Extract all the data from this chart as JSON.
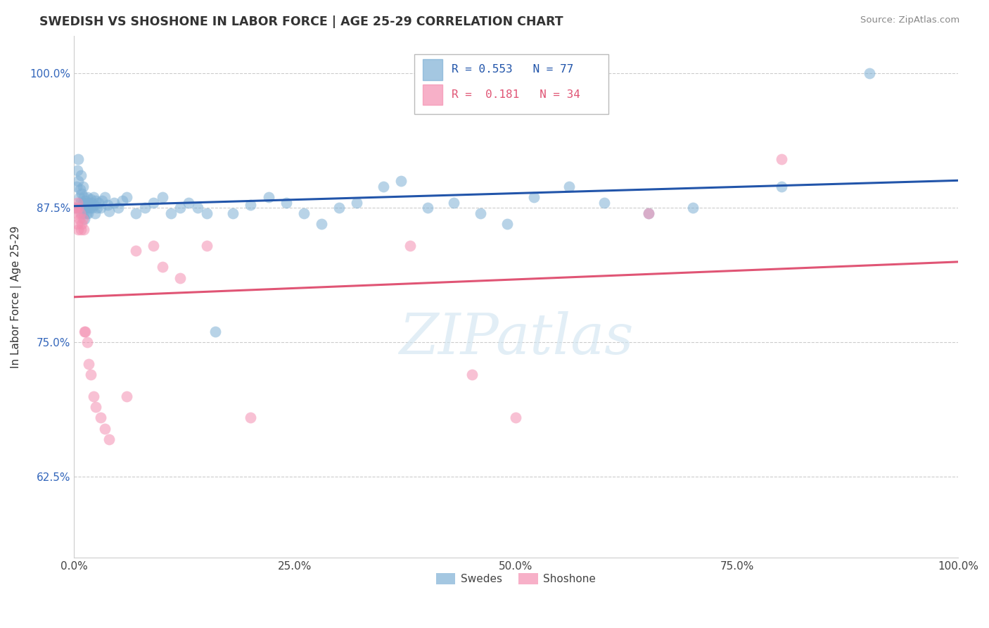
{
  "title": "SWEDISH VS SHOSHONE IN LABOR FORCE | AGE 25-29 CORRELATION CHART",
  "source_text": "Source: ZipAtlas.com",
  "ylabel": "In Labor Force | Age 25-29",
  "xlim": [
    0.0,
    1.0
  ],
  "ylim": [
    0.55,
    1.035
  ],
  "xticks": [
    0.0,
    0.25,
    0.5,
    0.75,
    1.0
  ],
  "xticklabels": [
    "0.0%",
    "25.0%",
    "50.0%",
    "75.0%",
    "100.0%"
  ],
  "yticks": [
    0.625,
    0.75,
    0.875,
    1.0
  ],
  "yticklabels": [
    "62.5%",
    "75.0%",
    "87.5%",
    "100.0%"
  ],
  "r_swedish": "0.553",
  "n_swedish": "77",
  "r_shoshone": "0.181",
  "n_shoshone": "34",
  "blue_color": "#7EB0D5",
  "pink_color": "#F48FB1",
  "blue_line_color": "#2255AA",
  "pink_line_color": "#E05575",
  "swedish_x": [
    0.002,
    0.003,
    0.004,
    0.005,
    0.005,
    0.006,
    0.006,
    0.007,
    0.007,
    0.008,
    0.008,
    0.009,
    0.009,
    0.01,
    0.01,
    0.011,
    0.011,
    0.012,
    0.012,
    0.013,
    0.013,
    0.014,
    0.015,
    0.015,
    0.016,
    0.016,
    0.017,
    0.018,
    0.019,
    0.02,
    0.021,
    0.022,
    0.023,
    0.024,
    0.025,
    0.026,
    0.028,
    0.03,
    0.032,
    0.035,
    0.038,
    0.04,
    0.045,
    0.05,
    0.055,
    0.06,
    0.07,
    0.08,
    0.09,
    0.1,
    0.11,
    0.12,
    0.13,
    0.14,
    0.15,
    0.16,
    0.18,
    0.2,
    0.22,
    0.24,
    0.26,
    0.28,
    0.3,
    0.32,
    0.35,
    0.37,
    0.4,
    0.43,
    0.46,
    0.49,
    0.52,
    0.56,
    0.6,
    0.65,
    0.7,
    0.8,
    0.9
  ],
  "swedish_y": [
    0.875,
    0.895,
    0.91,
    0.92,
    0.9,
    0.885,
    0.875,
    0.892,
    0.88,
    0.905,
    0.875,
    0.888,
    0.87,
    0.895,
    0.88,
    0.87,
    0.885,
    0.875,
    0.865,
    0.882,
    0.875,
    0.87,
    0.885,
    0.875,
    0.88,
    0.87,
    0.878,
    0.875,
    0.883,
    0.88,
    0.875,
    0.885,
    0.878,
    0.87,
    0.882,
    0.875,
    0.88,
    0.875,
    0.882,
    0.885,
    0.878,
    0.872,
    0.88,
    0.875,
    0.882,
    0.885,
    0.87,
    0.875,
    0.88,
    0.885,
    0.87,
    0.875,
    0.88,
    0.875,
    0.87,
    0.76,
    0.87,
    0.878,
    0.885,
    0.88,
    0.87,
    0.86,
    0.875,
    0.88,
    0.895,
    0.9,
    0.875,
    0.88,
    0.87,
    0.86,
    0.885,
    0.895,
    0.88,
    0.87,
    0.875,
    0.895,
    1.0
  ],
  "shoshone_x": [
    0.002,
    0.003,
    0.004,
    0.004,
    0.005,
    0.005,
    0.006,
    0.007,
    0.008,
    0.009,
    0.01,
    0.011,
    0.012,
    0.013,
    0.015,
    0.017,
    0.019,
    0.022,
    0.025,
    0.03,
    0.035,
    0.04,
    0.06,
    0.07,
    0.09,
    0.1,
    0.12,
    0.15,
    0.2,
    0.38,
    0.45,
    0.5,
    0.65,
    0.8
  ],
  "shoshone_y": [
    0.875,
    0.87,
    0.88,
    0.86,
    0.875,
    0.855,
    0.865,
    0.87,
    0.855,
    0.86,
    0.865,
    0.855,
    0.76,
    0.76,
    0.75,
    0.73,
    0.72,
    0.7,
    0.69,
    0.68,
    0.67,
    0.66,
    0.7,
    0.835,
    0.84,
    0.82,
    0.81,
    0.84,
    0.68,
    0.84,
    0.72,
    0.68,
    0.87,
    0.92
  ]
}
